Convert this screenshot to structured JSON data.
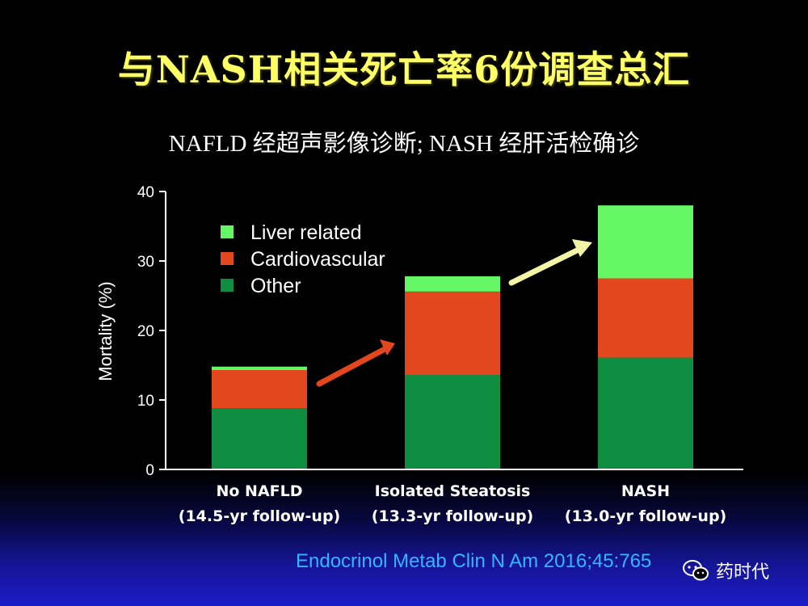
{
  "slide": {
    "title": "与NASH相关死亡率6份调查总汇",
    "subtitle": "NAFLD 经超声影像诊断; NASH 经肝活检确诊",
    "citation": "Endocrinol Metab Clin N Am 2016;45:765",
    "watermark": "药时代"
  },
  "colors": {
    "liver": "#66f766",
    "cardio": "#e2471e",
    "other": "#0f8d40",
    "arrow_red": "#e2471e",
    "arrow_yellow": "#f4f4a6",
    "title": "#ffff66",
    "citation": "#33b5ff"
  },
  "icons": {
    "watermark": "wechat-icon"
  },
  "chart_data": {
    "type": "bar",
    "stacked": true,
    "categories": [
      [
        "No NAFLD",
        "(14.5-yr follow-up)"
      ],
      [
        "Isolated Steatosis",
        "(13.3-yr follow-up)"
      ],
      [
        "NASH",
        "(13.0-yr follow-up)"
      ]
    ],
    "series": [
      {
        "name": "Other",
        "values": [
          8.8,
          13.6,
          16.1
        ],
        "color": "#0f8d40"
      },
      {
        "name": "Cardiovascular",
        "values": [
          5.5,
          12.0,
          11.4
        ],
        "color": "#e2471e"
      },
      {
        "name": "Liver related",
        "values": [
          0.5,
          2.2,
          10.5
        ],
        "color": "#66f766"
      }
    ],
    "legend": {
      "position": "top-left",
      "order": [
        "Liver related",
        "Cardiovascular",
        "Other"
      ]
    },
    "ylabel": "Mortality (%)",
    "xlabel": "",
    "ylim": [
      0,
      40
    ],
    "yticks": [
      0,
      10,
      20,
      30,
      40
    ],
    "grid": false
  }
}
